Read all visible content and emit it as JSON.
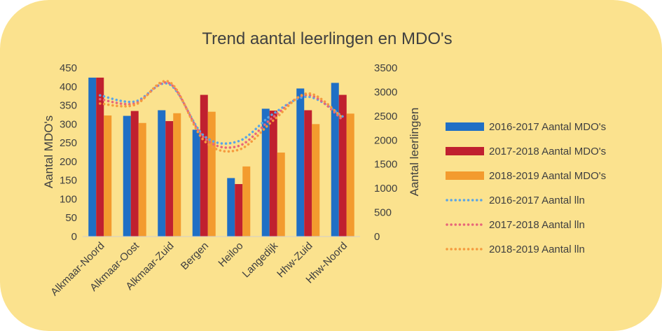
{
  "chart_data": {
    "type": "bar",
    "title": "Trend aantal leerlingen en MDO's",
    "categories": [
      "Alkmaar-Noord",
      "Alkmaar-Oost",
      "Alkmaar-Zuid",
      "Bergen",
      "Heiloo",
      "Langedijk",
      "Hhw-Zuid",
      "Hhw-Noord"
    ],
    "ylabel": "Aantal MDO's",
    "ylabel_right": "Aantal leerlingen",
    "ylim": [
      0,
      450
    ],
    "ylim_right": [
      0,
      3500
    ],
    "yticks": [
      "450",
      "400",
      "350",
      "300",
      "250",
      "200",
      "150",
      "100",
      "50",
      "0"
    ],
    "yticks_right": [
      "3500",
      "3000",
      "2500",
      "2000",
      "1500",
      "1000",
      "500",
      "0"
    ],
    "grid": false,
    "legend_position": "right",
    "bar_series": [
      {
        "name": "2016-2017 Aantal MDO's",
        "color": "#1f6fc5",
        "values": [
          424,
          322,
          337,
          285,
          156,
          341,
          395,
          410
        ]
      },
      {
        "name": "2017-2018 Aantal MDO's",
        "color": "#c0202f",
        "values": [
          424,
          335,
          308,
          378,
          140,
          336,
          337,
          378
        ]
      },
      {
        "name": "2018-2019 Aantal MDO's",
        "color": "#f39b2e",
        "values": [
          323,
          303,
          329,
          333,
          187,
          224,
          300,
          328
        ]
      }
    ],
    "line_series": [
      {
        "name": "2016-2017 Aantal lln",
        "color": "#5aa5e6",
        "axis": "right",
        "values": [
          2930,
          2800,
          3160,
          2090,
          1980,
          2550,
          2900,
          2490
        ]
      },
      {
        "name": "2017-2018 Aantal lln",
        "color": "#e8667a",
        "axis": "right",
        "values": [
          2850,
          2760,
          3180,
          2050,
          1880,
          2480,
          2940,
          2420
        ]
      },
      {
        "name": "2018-2019 Aantal lln",
        "color": "#f59a3e",
        "axis": "right",
        "values": [
          2760,
          2730,
          3210,
          1990,
          1800,
          2410,
          2970,
          2460
        ]
      }
    ]
  }
}
